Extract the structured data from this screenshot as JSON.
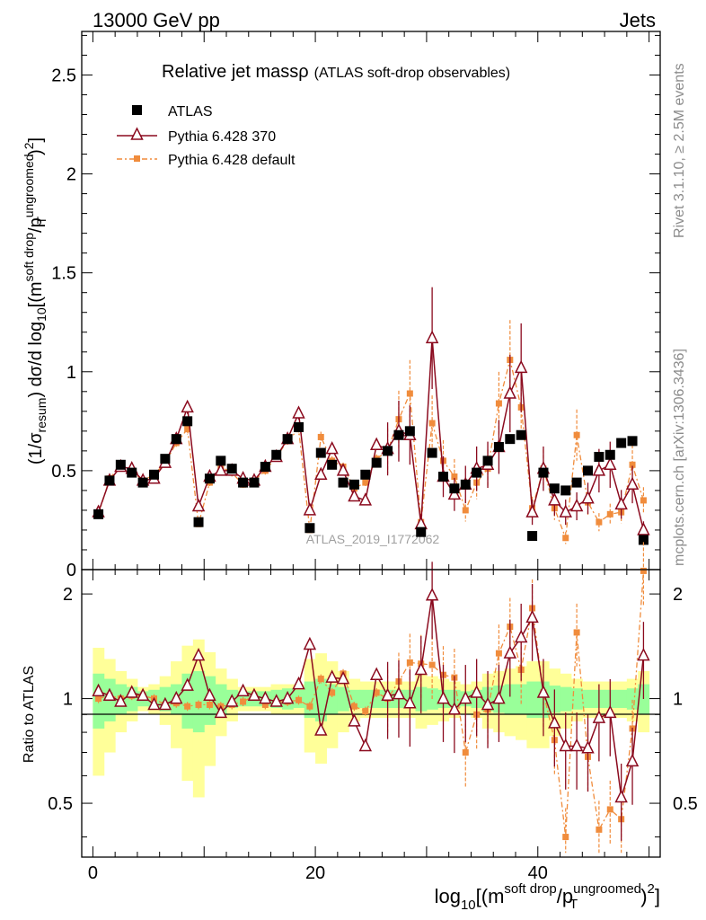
{
  "header": {
    "energy_label": "13000 GeV pp",
    "category_label": "Jets",
    "plot_title_main": "Relative jet massρ",
    "plot_title_sub": "(ATLAS soft-drop observables)",
    "analysis_watermark": "ATLAS_2019_I1772062",
    "rivet_label": "Rivet 3.1.10, ≥ 2.5M events",
    "mcplots_label": "mcplots.cern.ch [arXiv:1306.3436]"
  },
  "legend": {
    "entries": [
      {
        "label": "ATLAS"
      },
      {
        "label": "Pythia 6.428 370"
      },
      {
        "label": "Pythia 6.428 default"
      }
    ]
  },
  "axes": {
    "main_ylabel": "(1/σresum) dσ/d log10[(msoft drop/pTungroomed)2]",
    "ratio_ylabel": "Ratio to ATLAS",
    "xlabel": "log10[(msoft drop/pTungroomed)2]",
    "main_yticks": [
      "0",
      "0.5",
      "1",
      "1.5",
      "2",
      "2.5"
    ],
    "ratio_yticks": [
      "0.5",
      "1",
      "2"
    ],
    "xticks": [
      "0",
      "20",
      "40"
    ]
  },
  "colors": {
    "atlas": "#000000",
    "pythia370": "#8b0a1e",
    "pythia_default": "#f08c3c",
    "band_inner": "#99ff99",
    "band_outer": "#ffff99"
  },
  "chart_data": {
    "type": "scatter",
    "xlim": [
      -1,
      51
    ],
    "main_ylim": [
      0,
      2.72
    ],
    "ratio_ylim": [
      0.35,
      2.35
    ],
    "x": [
      0.5,
      1.5,
      2.5,
      3.5,
      4.5,
      5.5,
      6.5,
      7.5,
      8.5,
      9.5,
      10.5,
      11.5,
      12.5,
      13.5,
      14.5,
      15.5,
      16.5,
      17.5,
      18.5,
      19.5,
      20.5,
      21.5,
      22.5,
      23.5,
      24.5,
      25.5,
      26.5,
      27.5,
      28.5,
      29.5,
      30.5,
      31.5,
      32.5,
      33.5,
      34.5,
      35.5,
      36.5,
      37.5,
      38.5,
      39.5,
      40.5,
      41.5,
      42.5,
      43.5,
      44.5,
      45.5,
      46.5,
      47.5,
      48.5,
      49.5
    ],
    "series": [
      {
        "name": "ATLAS",
        "values": [
          0.28,
          0.45,
          0.53,
          0.49,
          0.44,
          0.48,
          0.56,
          0.66,
          0.75,
          0.24,
          0.46,
          0.55,
          0.51,
          0.44,
          0.44,
          0.52,
          0.58,
          0.66,
          0.72,
          0.21,
          0.59,
          0.53,
          0.44,
          0.43,
          0.48,
          0.54,
          0.6,
          0.68,
          0.7,
          0.19,
          0.59,
          0.47,
          0.41,
          0.43,
          0.49,
          0.55,
          0.62,
          0.66,
          0.68,
          0.17,
          0.49,
          0.41,
          0.4,
          0.44,
          0.5,
          0.57,
          0.58,
          0.64,
          0.65,
          0.15
        ]
      },
      {
        "name": "Pythia 6.428 370",
        "values": [
          0.29,
          0.45,
          0.52,
          0.51,
          0.45,
          0.46,
          0.54,
          0.66,
          0.82,
          0.32,
          0.47,
          0.5,
          0.5,
          0.46,
          0.45,
          0.52,
          0.57,
          0.66,
          0.79,
          0.3,
          0.48,
          0.61,
          0.5,
          0.37,
          0.35,
          0.63,
          0.61,
          0.7,
          0.68,
          0.23,
          1.17,
          0.47,
          0.38,
          0.43,
          0.51,
          0.53,
          0.62,
          0.89,
          1.02,
          0.29,
          0.51,
          0.35,
          0.29,
          0.32,
          0.36,
          0.5,
          0.53,
          0.33,
          0.43,
          0.2
        ]
      },
      {
        "name": "Pythia 6.428 default",
        "values": [
          0.28,
          0.46,
          0.53,
          0.5,
          0.45,
          0.48,
          0.54,
          0.64,
          0.71,
          0.23,
          0.44,
          0.52,
          0.49,
          0.43,
          0.45,
          0.5,
          0.57,
          0.65,
          0.71,
          0.2,
          0.67,
          0.55,
          0.52,
          0.41,
          0.44,
          0.56,
          0.6,
          0.76,
          0.89,
          0.24,
          0.74,
          0.55,
          0.47,
          0.3,
          0.44,
          0.51,
          0.84,
          1.06,
          0.82,
          0.31,
          0.51,
          0.31,
          0.16,
          0.68,
          0.34,
          0.24,
          0.28,
          0.29,
          0.53,
          0.35
        ]
      }
    ],
    "ratio": {
      "pythia370": [
        1.05,
        1.02,
        0.98,
        1.04,
        1.02,
        0.96,
        0.96,
        1.0,
        1.09,
        1.33,
        1.02,
        0.91,
        0.98,
        1.05,
        1.02,
        1.0,
        0.98,
        1.0,
        1.1,
        1.43,
        0.81,
        1.15,
        1.14,
        0.86,
        0.73,
        1.17,
        1.02,
        1.03,
        0.97,
        1.21,
        1.98,
        1.0,
        0.93,
        1.0,
        1.04,
        0.96,
        1.0,
        1.35,
        1.5,
        1.71,
        1.04,
        0.85,
        0.73,
        0.73,
        0.72,
        0.88,
        0.91,
        0.52,
        0.66,
        1.33
      ],
      "pythia_default": [
        1.0,
        1.02,
        1.0,
        1.02,
        1.02,
        1.0,
        0.96,
        0.97,
        0.95,
        0.96,
        0.96,
        0.95,
        0.96,
        0.98,
        1.02,
        0.96,
        0.98,
        0.98,
        0.99,
        0.95,
        1.14,
        1.04,
        1.18,
        0.95,
        0.92,
        1.04,
        1.0,
        1.12,
        1.27,
        1.26,
        1.25,
        1.17,
        1.15,
        0.7,
        0.9,
        0.93,
        1.35,
        1.61,
        1.21,
        1.82,
        1.04,
        0.76,
        0.4,
        1.55,
        0.68,
        0.42,
        0.48,
        0.45,
        0.82,
        2.33
      ]
    },
    "bands": {
      "inner_half_width": [
        0.18,
        0.14,
        0.1,
        0.08,
        0.05,
        0.06,
        0.08,
        0.1,
        0.18,
        0.2,
        0.16,
        0.1,
        0.06,
        0.05,
        0.05,
        0.05,
        0.06,
        0.07,
        0.06,
        0.12,
        0.14,
        0.1,
        0.08,
        0.06,
        0.06,
        0.06,
        0.06,
        0.06,
        0.06,
        0.08,
        0.07,
        0.06,
        0.06,
        0.05,
        0.06,
        0.08,
        0.09,
        0.1,
        0.1,
        0.12,
        0.12,
        0.09,
        0.08,
        0.07,
        0.06,
        0.06,
        0.06,
        0.06,
        0.07,
        0.1
      ],
      "outer_half_width": [
        0.4,
        0.3,
        0.2,
        0.14,
        0.08,
        0.1,
        0.16,
        0.28,
        0.42,
        0.48,
        0.36,
        0.22,
        0.14,
        0.08,
        0.08,
        0.08,
        0.1,
        0.1,
        0.1,
        0.3,
        0.35,
        0.28,
        0.2,
        0.14,
        0.12,
        0.12,
        0.12,
        0.12,
        0.12,
        0.18,
        0.16,
        0.14,
        0.12,
        0.1,
        0.12,
        0.18,
        0.2,
        0.22,
        0.24,
        0.28,
        0.28,
        0.22,
        0.18,
        0.14,
        0.12,
        0.12,
        0.12,
        0.12,
        0.14,
        0.2
      ]
    }
  }
}
